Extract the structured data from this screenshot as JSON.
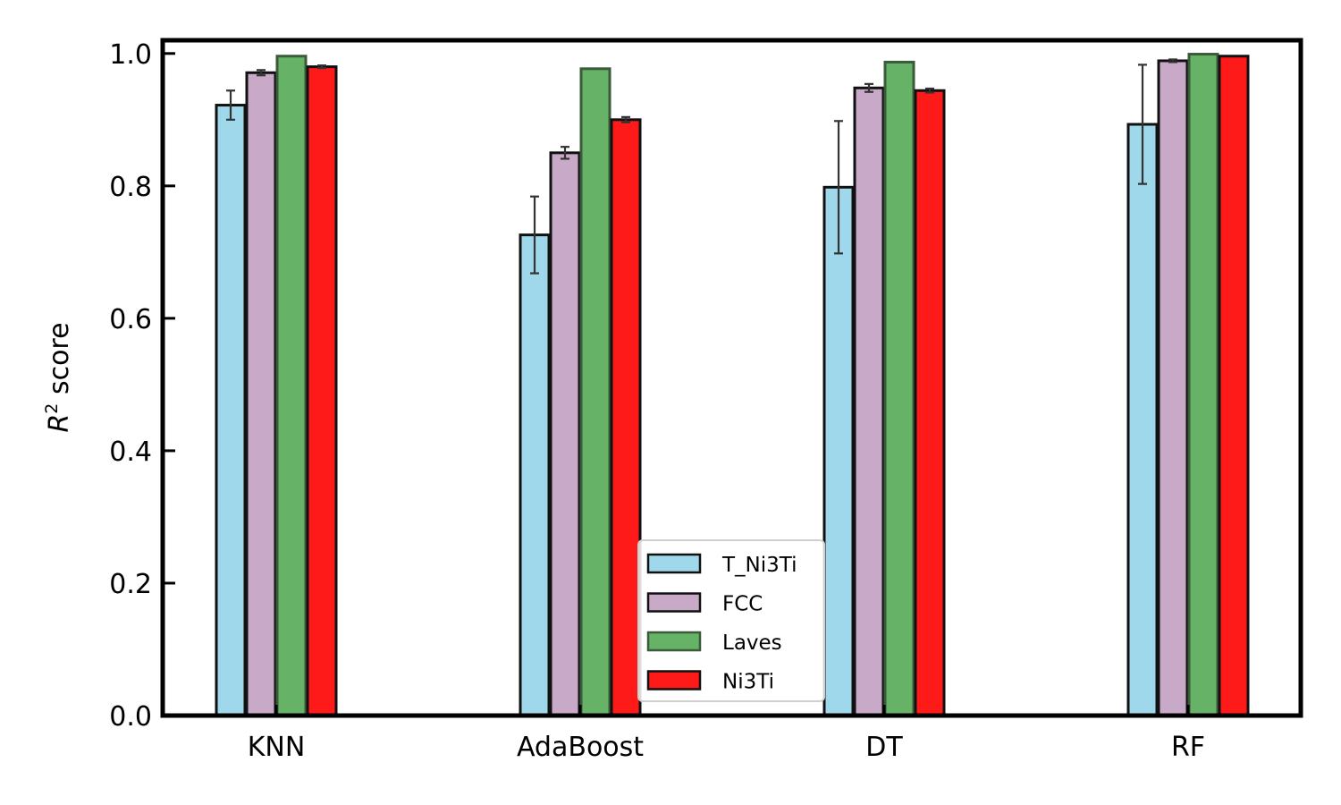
{
  "chart_data": {
    "type": "bar",
    "title": "",
    "xlabel": "",
    "ylabel_base": "R",
    "ylabel_sup": "2",
    "ylabel_rest": " score",
    "categories": [
      "KNN",
      "AdaBoost",
      "DT",
      "RF"
    ],
    "ylim": [
      0.0,
      1.02
    ],
    "yticks": [
      "0.0",
      "0.2",
      "0.4",
      "0.6",
      "0.8",
      "1.0"
    ],
    "grid": false,
    "legend_position": "bottom-center",
    "series": [
      {
        "name": "T_Ni3Ti",
        "color": "#9fd8ea",
        "values": [
          0.922,
          0.726,
          0.798,
          0.893
        ],
        "errors": [
          0.022,
          0.058,
          0.1,
          0.09
        ]
      },
      {
        "name": "FCC",
        "color": "#c9a9c8",
        "values": [
          0.971,
          0.85,
          0.948,
          0.989
        ],
        "errors": [
          0.004,
          0.009,
          0.006,
          0.002
        ]
      },
      {
        "name": "Laves",
        "color": "#66b266",
        "values": [
          0.996,
          0.977,
          0.987,
          0.999
        ],
        "errors": [
          0.001,
          0.001,
          0.001,
          0.0
        ]
      },
      {
        "name": "Ni3Ti",
        "color": "#ff1a1a",
        "values": [
          0.98,
          0.9,
          0.944,
          0.996
        ],
        "errors": [
          0.002,
          0.004,
          0.003,
          0.0
        ]
      }
    ]
  }
}
